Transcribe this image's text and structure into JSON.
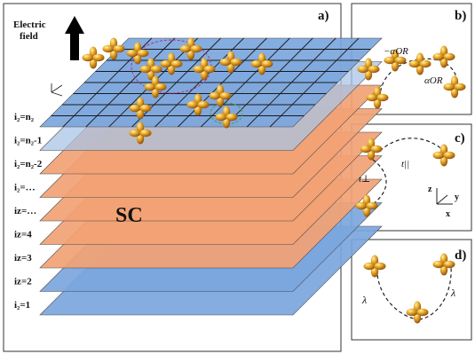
{
  "panel_a": {
    "tag": "a)",
    "field_label_line1": "Electric",
    "field_label_line2": "field",
    "sc_label": "SC",
    "layers": [
      {
        "label": "i₂=1",
        "color": "#7ba6dd"
      },
      {
        "label": "iz=2",
        "color": "#7ba6dd"
      },
      {
        "label": "iz=3",
        "color": "#f2a274"
      },
      {
        "label": "iz=4",
        "color": "#f2a274"
      },
      {
        "label": "iz=…",
        "color": "#f2a274"
      },
      {
        "label": "i₂=…",
        "color": "#f2a274"
      },
      {
        "label": "i₂=n₂-2",
        "color": "#f2a274"
      },
      {
        "label": "i₂=n₂-1",
        "color": "#a9c4e6"
      },
      {
        "label": "i₂=n₂",
        "color": "#7ba6dd"
      }
    ]
  },
  "panel_b": {
    "tag": "b)",
    "alpha_neg": "−αOR",
    "alpha_pos": "αOR"
  },
  "panel_c": {
    "tag": "c)",
    "t_par": "t||",
    "t_perp": "t⊥",
    "axis_z": "z",
    "axis_y": "y",
    "axis_x": "x"
  },
  "panel_d": {
    "tag": "d)",
    "lambda_left": "λ",
    "lambda_right": "λ"
  },
  "colors": {
    "blue_layer": "#7ba6dd",
    "orange_layer": "#f2a274",
    "orbital": "#e0a020",
    "frame": "#333333"
  }
}
